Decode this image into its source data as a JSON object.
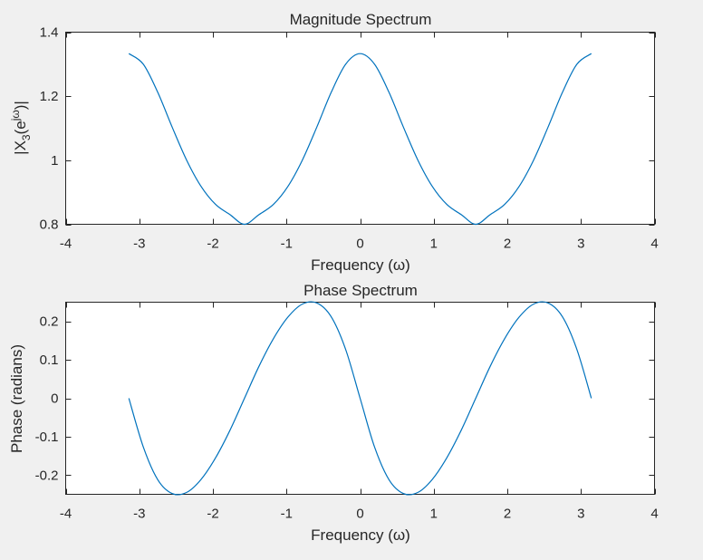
{
  "colors": {
    "background": "#f0f0f0",
    "plot_background": "#ffffff",
    "axis": "#262626",
    "series": "#0072bd"
  },
  "chart_data": [
    {
      "type": "line",
      "title": "Magnitude Spectrum",
      "xlabel": "Frequency (ω)",
      "ylabel_parts": {
        "open": "|X",
        "subscript": "3",
        "paren": "(e",
        "superscript": "jω",
        "close": ")|"
      },
      "xlim": [
        -4,
        4
      ],
      "ylim": [
        0.8,
        1.4
      ],
      "xticks": [
        -4,
        -3,
        -2,
        -1,
        0,
        1,
        2,
        3,
        4
      ],
      "xtick_labels": [
        "-4",
        "-3",
        "-2",
        "-1",
        "0",
        "1",
        "2",
        "3",
        "4"
      ],
      "yticks": [
        0.8,
        1.0,
        1.2,
        1.4
      ],
      "ytick_labels": [
        "0.8",
        "1",
        "1.2",
        "1.4"
      ],
      "grid": false,
      "series": [
        {
          "color": "#0072bd",
          "x": [
            -3.1416,
            -2.9452,
            -2.7489,
            -2.5525,
            -2.3562,
            -2.1598,
            -1.9635,
            -1.7671,
            -1.5708,
            -1.3744,
            -1.1781,
            -0.9817,
            -0.7854,
            -0.589,
            -0.3927,
            -0.1963,
            0.0,
            0.1963,
            0.3927,
            0.589,
            0.7854,
            0.9817,
            1.1781,
            1.3744,
            1.5708,
            1.7671,
            1.9635,
            2.1598,
            2.3562,
            2.5525,
            2.7489,
            2.9452,
            3.1416
          ],
          "y": [
            1.333,
            1.3,
            1.212,
            1.103,
            1.0,
            0.918,
            0.862,
            0.83,
            0.8,
            0.83,
            0.862,
            0.918,
            1.0,
            1.103,
            1.212,
            1.3,
            1.333,
            1.3,
            1.212,
            1.103,
            1.0,
            0.918,
            0.862,
            0.83,
            0.8,
            0.83,
            0.862,
            0.918,
            1.0,
            1.103,
            1.212,
            1.3,
            1.333
          ]
        }
      ]
    },
    {
      "type": "line",
      "title": "Phase Spectrum",
      "xlabel": "Frequency (ω)",
      "ylabel": "Phase (radians)",
      "xlim": [
        -4,
        4
      ],
      "ylim": [
        -0.25,
        0.25
      ],
      "xticks": [
        -4,
        -3,
        -2,
        -1,
        0,
        1,
        2,
        3,
        4
      ],
      "xtick_labels": [
        "-4",
        "-3",
        "-2",
        "-1",
        "0",
        "1",
        "2",
        "3",
        "4"
      ],
      "yticks": [
        -0.2,
        -0.1,
        0,
        0.1,
        0.2
      ],
      "ytick_labels": [
        "-0.2",
        "-0.1",
        "0",
        "0.1",
        "0.2"
      ],
      "grid": false,
      "series": [
        {
          "color": "#0072bd",
          "x": [
            -3.1416,
            -2.9452,
            -2.7489,
            -2.5525,
            -2.3562,
            -2.1598,
            -1.9635,
            -1.7671,
            -1.5708,
            -1.3744,
            -1.1781,
            -0.9817,
            -0.7854,
            -0.589,
            -0.3927,
            -0.1963,
            0.0,
            0.1963,
            0.3927,
            0.589,
            0.7854,
            0.9817,
            1.1781,
            1.3744,
            1.5708,
            1.7671,
            1.9635,
            2.1598,
            2.3562,
            2.5525,
            2.7489,
            2.9452,
            3.1416
          ],
          "y": [
            0.0,
            -0.127,
            -0.212,
            -0.248,
            -0.245,
            -0.211,
            -0.155,
            -0.083,
            0.0,
            0.083,
            0.155,
            0.211,
            0.245,
            0.248,
            0.212,
            0.127,
            0.0,
            -0.127,
            -0.212,
            -0.248,
            -0.245,
            -0.211,
            -0.155,
            -0.083,
            0.0,
            0.083,
            0.155,
            0.211,
            0.245,
            0.248,
            0.212,
            0.127,
            0.0
          ]
        }
      ]
    }
  ]
}
